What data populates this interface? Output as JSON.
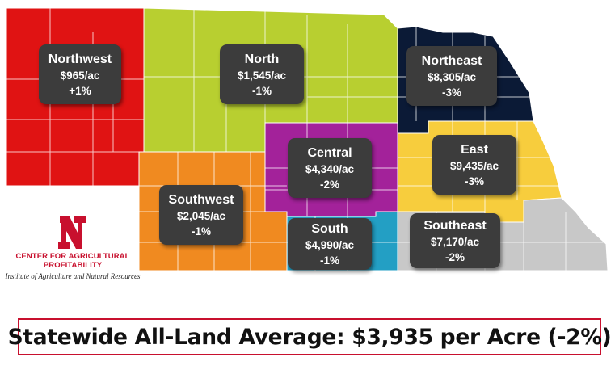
{
  "regions": [
    {
      "id": "northwest",
      "name": "Northwest",
      "value": "$965/ac",
      "change": "+1%",
      "color": "#e01313"
    },
    {
      "id": "north",
      "name": "North",
      "value": "$1,545/ac",
      "change": "-1%",
      "color": "#b8cf30"
    },
    {
      "id": "northeast",
      "name": "Northeast",
      "value": "$8,305/ac",
      "change": "-3%",
      "color": "#0b1a36"
    },
    {
      "id": "central",
      "name": "Central",
      "value": "$4,340/ac",
      "change": "-2%",
      "color": "#a3229a"
    },
    {
      "id": "east",
      "name": "East",
      "value": "$9,435/ac",
      "change": "-3%",
      "color": "#f7cd3d"
    },
    {
      "id": "southwest",
      "name": "Southwest",
      "value": "$2,045/ac",
      "change": "-1%",
      "color": "#f08a20"
    },
    {
      "id": "south",
      "name": "South",
      "value": "$4,990/ac",
      "change": "-1%",
      "color": "#239fc4"
    },
    {
      "id": "southeast",
      "name": "Southeast",
      "value": "$7,170/ac",
      "change": "-2%",
      "color": "#c8c8c8"
    }
  ],
  "logo": {
    "org": "CENTER FOR AGRICULTURAL PROFITABILITY",
    "institute": "Institute of Agriculture and Natural Resources",
    "brand_color": "#c8102e"
  },
  "statewide": {
    "text": "Statewide All-Land Average: $3,935 per Acre (-2%)",
    "border_color": "#c8102e"
  }
}
